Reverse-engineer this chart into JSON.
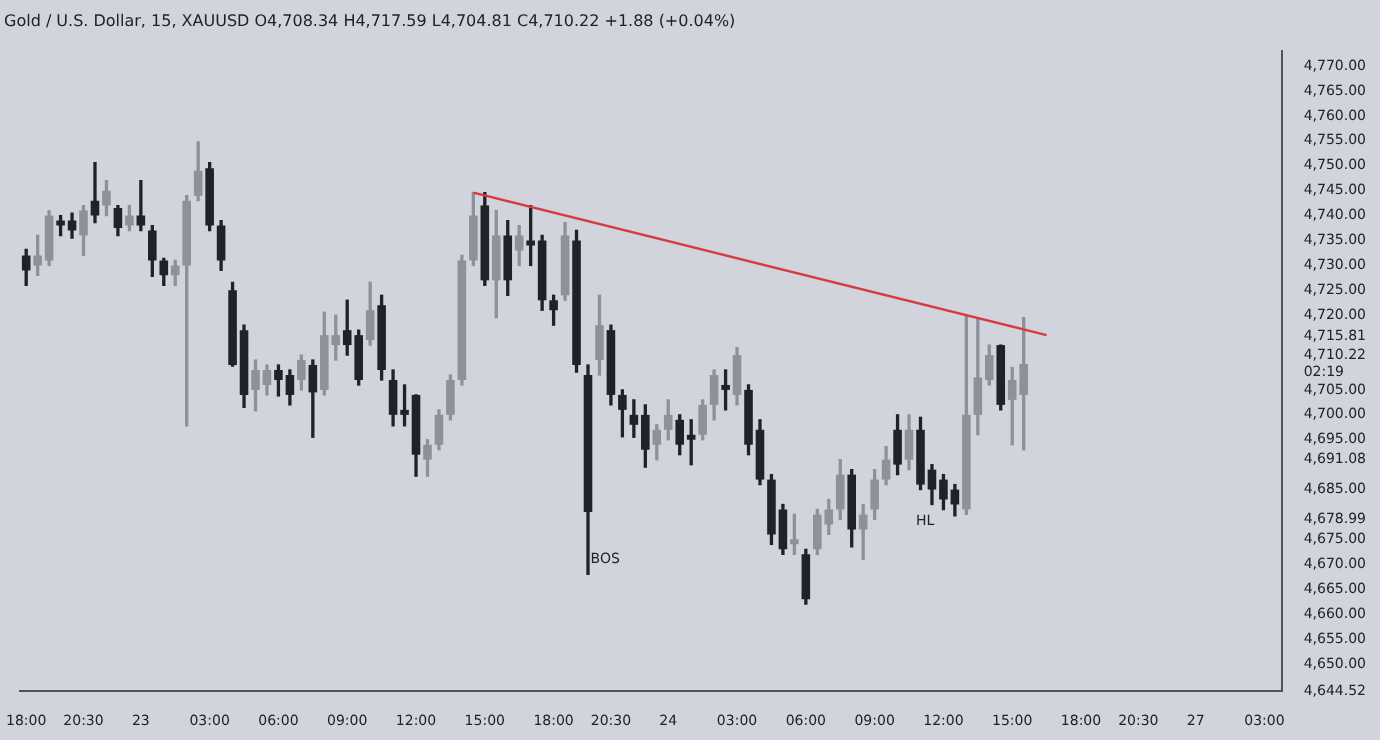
{
  "chart_data": {
    "type": "candlestick",
    "title": "Gold / U.S. Dollar, 15, XAUUSD O4,708.34 H4,717.59 L4,704.81 C4,710.22 +1.88 (+0.04%)",
    "categories": [
      "18:00",
      null,
      null,
      null,
      null,
      "20:30",
      null,
      null,
      null,
      null,
      "23",
      null,
      null,
      null,
      null,
      null,
      "03:00",
      null,
      null,
      null,
      null,
      null,
      "06:00",
      null,
      null,
      null,
      null,
      null,
      "09:00",
      null,
      null,
      null,
      null,
      null,
      "12:00",
      null,
      null,
      null,
      null,
      null,
      "15:00",
      null,
      null,
      null,
      null,
      null,
      "18:00",
      null,
      null,
      null,
      null,
      "20:30",
      null,
      null,
      null,
      null,
      "24",
      null,
      null,
      null,
      null,
      null,
      "03:00",
      null,
      null,
      null,
      null,
      null,
      "06:00",
      null,
      null,
      null,
      null,
      null,
      "09:00",
      null,
      null,
      null,
      null,
      null,
      "12:00",
      null,
      null,
      null,
      null,
      null,
      "15:00",
      null,
      null,
      null,
      null,
      null,
      "18:00",
      null,
      null,
      null,
      null,
      "20:30",
      null,
      null,
      null,
      null,
      "27",
      null,
      null,
      null,
      null,
      null,
      "03:00",
      null
    ],
    "ohlc": [
      [
        4732,
        4733.2,
        4726,
        4729
      ],
      [
        4730,
        4736,
        4728,
        4732
      ],
      [
        4731,
        4741,
        4730,
        4740
      ],
      [
        4739,
        4740,
        4736,
        4738
      ],
      [
        4739,
        4740.5,
        4735.5,
        4737
      ],
      [
        4736,
        4742,
        4732,
        4741
      ],
      [
        4743,
        4750.6,
        4738.6,
        4740
      ],
      [
        4742,
        4747,
        4740,
        4745
      ],
      [
        4741.5,
        4742,
        4736,
        4737.5
      ],
      [
        4738,
        4742,
        4737,
        4740
      ],
      [
        4740,
        4747,
        4737,
        4738
      ],
      [
        4737,
        4738,
        4727.8,
        4731
      ],
      [
        4731,
        4731.4,
        4726,
        4728
      ],
      [
        4728,
        4731,
        4726,
        4730
      ],
      [
        4730,
        4744,
        4697.8,
        4743
      ],
      [
        4744,
        4754.8,
        4743,
        4749
      ],
      [
        4749.5,
        4750.6,
        4737,
        4738
      ],
      [
        4738,
        4739,
        4729,
        4731
      ],
      [
        4725,
        4726.6,
        4709.8,
        4710
      ],
      [
        4717,
        4718,
        4701.5,
        4704
      ],
      [
        4705,
        4711,
        4700.8,
        4709
      ],
      [
        4706,
        4710,
        4704,
        4709
      ],
      [
        4709,
        4710,
        4703.8,
        4707
      ],
      [
        4708,
        4709,
        4702,
        4704
      ],
      [
        4707,
        4712,
        4705,
        4711
      ],
      [
        4710,
        4711,
        4695.5,
        4704.5
      ],
      [
        4705,
        4720.6,
        4704,
        4716
      ],
      [
        4714,
        4720,
        4711,
        4716
      ],
      [
        4717,
        4723,
        4712,
        4714
      ],
      [
        4716,
        4717,
        4706,
        4707
      ],
      [
        4715,
        4726.6,
        4714,
        4721
      ],
      [
        4722,
        4724,
        4707,
        4709
      ],
      [
        4707,
        4709,
        4697.8,
        4700
      ],
      [
        4701,
        4706,
        4697.8,
        4700
      ],
      [
        4704,
        4704,
        4687.7,
        4692
      ],
      [
        4691,
        4695,
        4687.7,
        4694
      ],
      [
        4694,
        4701,
        4693,
        4700
      ],
      [
        4700,
        4708,
        4699,
        4707
      ],
      [
        4707,
        4732,
        4706,
        4731
      ],
      [
        4731,
        4744.6,
        4730,
        4740
      ],
      [
        4742,
        4744.6,
        4726,
        4727
      ],
      [
        4727,
        4741,
        4719.5,
        4736
      ],
      [
        4736,
        4739,
        4724,
        4727
      ],
      [
        4733,
        4738,
        4730,
        4736
      ],
      [
        4735,
        4742,
        4730,
        4734
      ],
      [
        4735,
        4736,
        4721,
        4723
      ],
      [
        4723,
        4724,
        4718,
        4721
      ],
      [
        4724,
        4738.6,
        4723,
        4736
      ],
      [
        4735,
        4737,
        4708.6,
        4710
      ],
      [
        4708,
        4710,
        4668,
        4680.5
      ],
      [
        4711,
        4724,
        4708,
        4718
      ],
      [
        4717,
        4718,
        4702,
        4704
      ],
      [
        4704,
        4705,
        4695.6,
        4701
      ],
      [
        4700,
        4703,
        4695.5,
        4698
      ],
      [
        4700,
        4702,
        4689.5,
        4693
      ],
      [
        4694,
        4698,
        4691,
        4697
      ],
      [
        4697,
        4703,
        4695,
        4700
      ],
      [
        4699,
        4700,
        4692,
        4694
      ],
      [
        4696,
        4699,
        4690,
        4695
      ],
      [
        4696,
        4703,
        4695,
        4702
      ],
      [
        4702,
        4709,
        4699,
        4708
      ],
      [
        4706,
        4709,
        4701,
        4705
      ],
      [
        4704,
        4713.5,
        4702,
        4712
      ],
      [
        4705,
        4706,
        4692,
        4694
      ],
      [
        4697,
        4699,
        4686,
        4687
      ],
      [
        4687,
        4688,
        4674,
        4676
      ],
      [
        4681,
        4682,
        4672,
        4673
      ],
      [
        4674,
        4680,
        4672,
        4675
      ],
      [
        4672,
        4673,
        4662,
        4663
      ],
      [
        4673,
        4681,
        4672,
        4680
      ],
      [
        4678,
        4683,
        4676,
        4681
      ],
      [
        4681,
        4691,
        4679,
        4688
      ],
      [
        4688,
        4689,
        4673.5,
        4677
      ],
      [
        4677,
        4682,
        4671,
        4680
      ],
      [
        4681,
        4689,
        4679,
        4687
      ],
      [
        4687,
        4693.6,
        4686,
        4691
      ],
      [
        4697,
        4700,
        4688,
        4690
      ],
      [
        4691,
        4700,
        4689,
        4697
      ],
      [
        4697,
        4699.5,
        4685,
        4686
      ],
      [
        4689,
        4690,
        4682,
        4685
      ],
      [
        4687,
        4688,
        4681,
        4683
      ],
      [
        4685,
        4686,
        4679.7,
        4682
      ],
      [
        4681,
        4720,
        4680,
        4700
      ],
      [
        4700,
        4719.5,
        4696,
        4707.5
      ],
      [
        4707,
        4714,
        4706,
        4712
      ],
      [
        4714,
        4714,
        4701,
        4702
      ],
      [
        4703,
        4709.5,
        4694,
        4707
      ],
      [
        4704,
        4719.5,
        4693,
        4710.22
      ],
      null,
      null,
      null,
      null,
      null,
      null,
      null,
      null,
      null,
      null,
      null,
      null,
      null,
      null,
      null,
      null,
      null,
      null,
      null,
      null,
      null,
      null
    ],
    "series": [
      {
        "type": "line",
        "color": "#d63a45",
        "values": [
          null,
          null,
          null,
          null,
          null,
          null,
          null,
          null,
          null,
          null,
          null,
          null,
          null,
          null,
          null,
          null,
          null,
          null,
          null,
          null,
          null,
          null,
          null,
          null,
          null,
          null,
          null,
          null,
          null,
          null,
          null,
          null,
          null,
          null,
          null,
          null,
          null,
          null,
          null,
          4744.6,
          null,
          null,
          null,
          null,
          null,
          null,
          null,
          null,
          null,
          null,
          null,
          null,
          null,
          null,
          null,
          null,
          null,
          null,
          null,
          null,
          null,
          null,
          null,
          null,
          null,
          null,
          null,
          null,
          null,
          null,
          null,
          null,
          null,
          null,
          null,
          null,
          null,
          null,
          null,
          null,
          null,
          null,
          null,
          null,
          null,
          null,
          null,
          null,
          null,
          4716,
          null,
          null,
          null,
          null,
          null,
          null,
          null,
          null,
          null,
          null,
          null,
          null,
          null,
          null,
          null,
          null,
          null,
          null,
          null,
          null
        ]
      }
    ],
    "ylim": [
      4644.52,
      4773
    ],
    "yticks": [
      {
        "value": 4770,
        "label": "4,770.00"
      },
      {
        "value": 4765,
        "label": "4,765.00"
      },
      {
        "value": 4760,
        "label": "4,760.00"
      },
      {
        "value": 4755,
        "label": "4,755.00"
      },
      {
        "value": 4750,
        "label": "4,750.00"
      },
      {
        "value": 4745,
        "label": "4,745.00"
      },
      {
        "value": 4740,
        "label": "4,740.00"
      },
      {
        "value": 4735,
        "label": "4,735.00"
      },
      {
        "value": 4730,
        "label": "4,730.00"
      },
      {
        "value": 4725,
        "label": "4,725.00"
      },
      {
        "value": 4720,
        "label": "4,720.00"
      },
      {
        "value": 4715.81,
        "label": "4,715.81"
      },
      {
        "value": 4710.22,
        "label": "4,710.22\n02:19"
      },
      {
        "value": 4705,
        "label": "4,705.00"
      },
      {
        "value": 4700,
        "label": "4,700.00"
      },
      {
        "value": 4695,
        "label": "4,695.00"
      },
      {
        "value": 4691.08,
        "label": "4,691.08"
      },
      {
        "value": 4685,
        "label": "4,685.00"
      },
      {
        "value": 4678.99,
        "label": "4,678.99"
      },
      {
        "value": 4675,
        "label": "4,675.00"
      },
      {
        "value": 4670,
        "label": "4,670.00"
      },
      {
        "value": 4665,
        "label": "4,665.00"
      },
      {
        "value": 4660,
        "label": "4,660.00"
      },
      {
        "value": 4655,
        "label": "4,655.00"
      },
      {
        "value": 4650,
        "label": "4,650.00"
      },
      {
        "value": 4644.52,
        "label": "4,644.52"
      }
    ],
    "annotations": [
      "BOS",
      "HL"
    ]
  }
}
